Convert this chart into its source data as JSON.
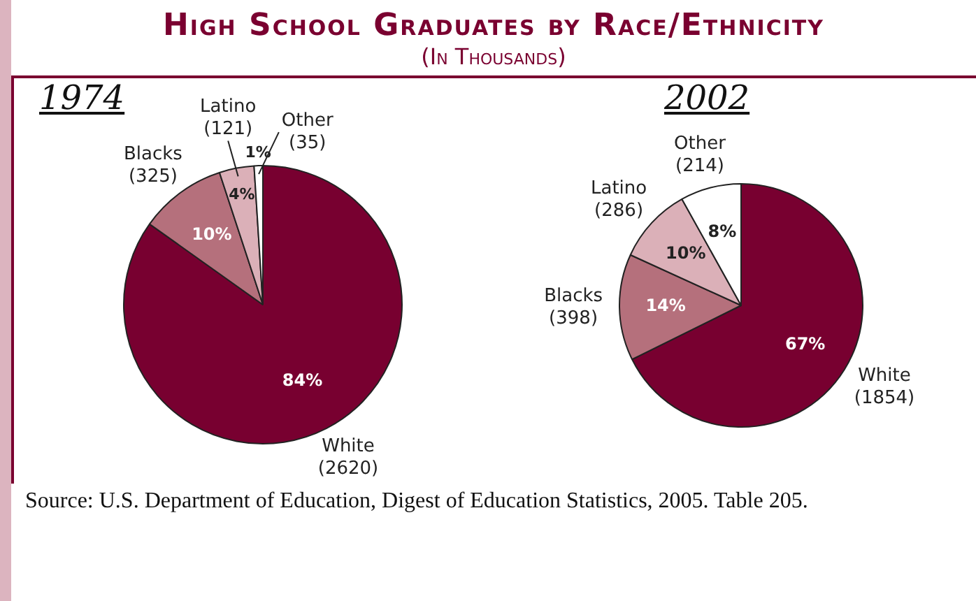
{
  "chart_data": [
    {
      "type": "pie",
      "title": "High School Graduates by Race/Ethnicity",
      "subtitle": "(In Thousands)",
      "categories": [
        "White\n(2620)",
        "Blacks\n(325)",
        "Latino\n(121)",
        "Other\n(35)"
      ],
      "values": [
        84,
        10,
        4,
        1
      ],
      "value_labels": [
        "84%",
        "10%",
        "4%",
        "1%"
      ],
      "colors": [
        "#780030",
        "#b5707c",
        "#dbb0b8",
        "#ffffff"
      ],
      "legend": false,
      "annotations": [
        "1974",
        "Source: U.S. Department of Education, Digest of Education Statistics, 2005. Table 205."
      ]
    },
    {
      "type": "pie",
      "categories": [
        "White\n(1854)",
        "Blacks\n(398)",
        "Latino\n(286)",
        "Other\n(214)"
      ],
      "values": [
        67,
        14,
        10,
        8
      ],
      "value_labels": [
        "67%",
        "14%",
        "10%",
        "8%"
      ],
      "colors": [
        "#780030",
        "#b5707c",
        "#dbb0b8",
        "#ffffff"
      ],
      "legend": false,
      "annotations": [
        "2002"
      ]
    }
  ]
}
